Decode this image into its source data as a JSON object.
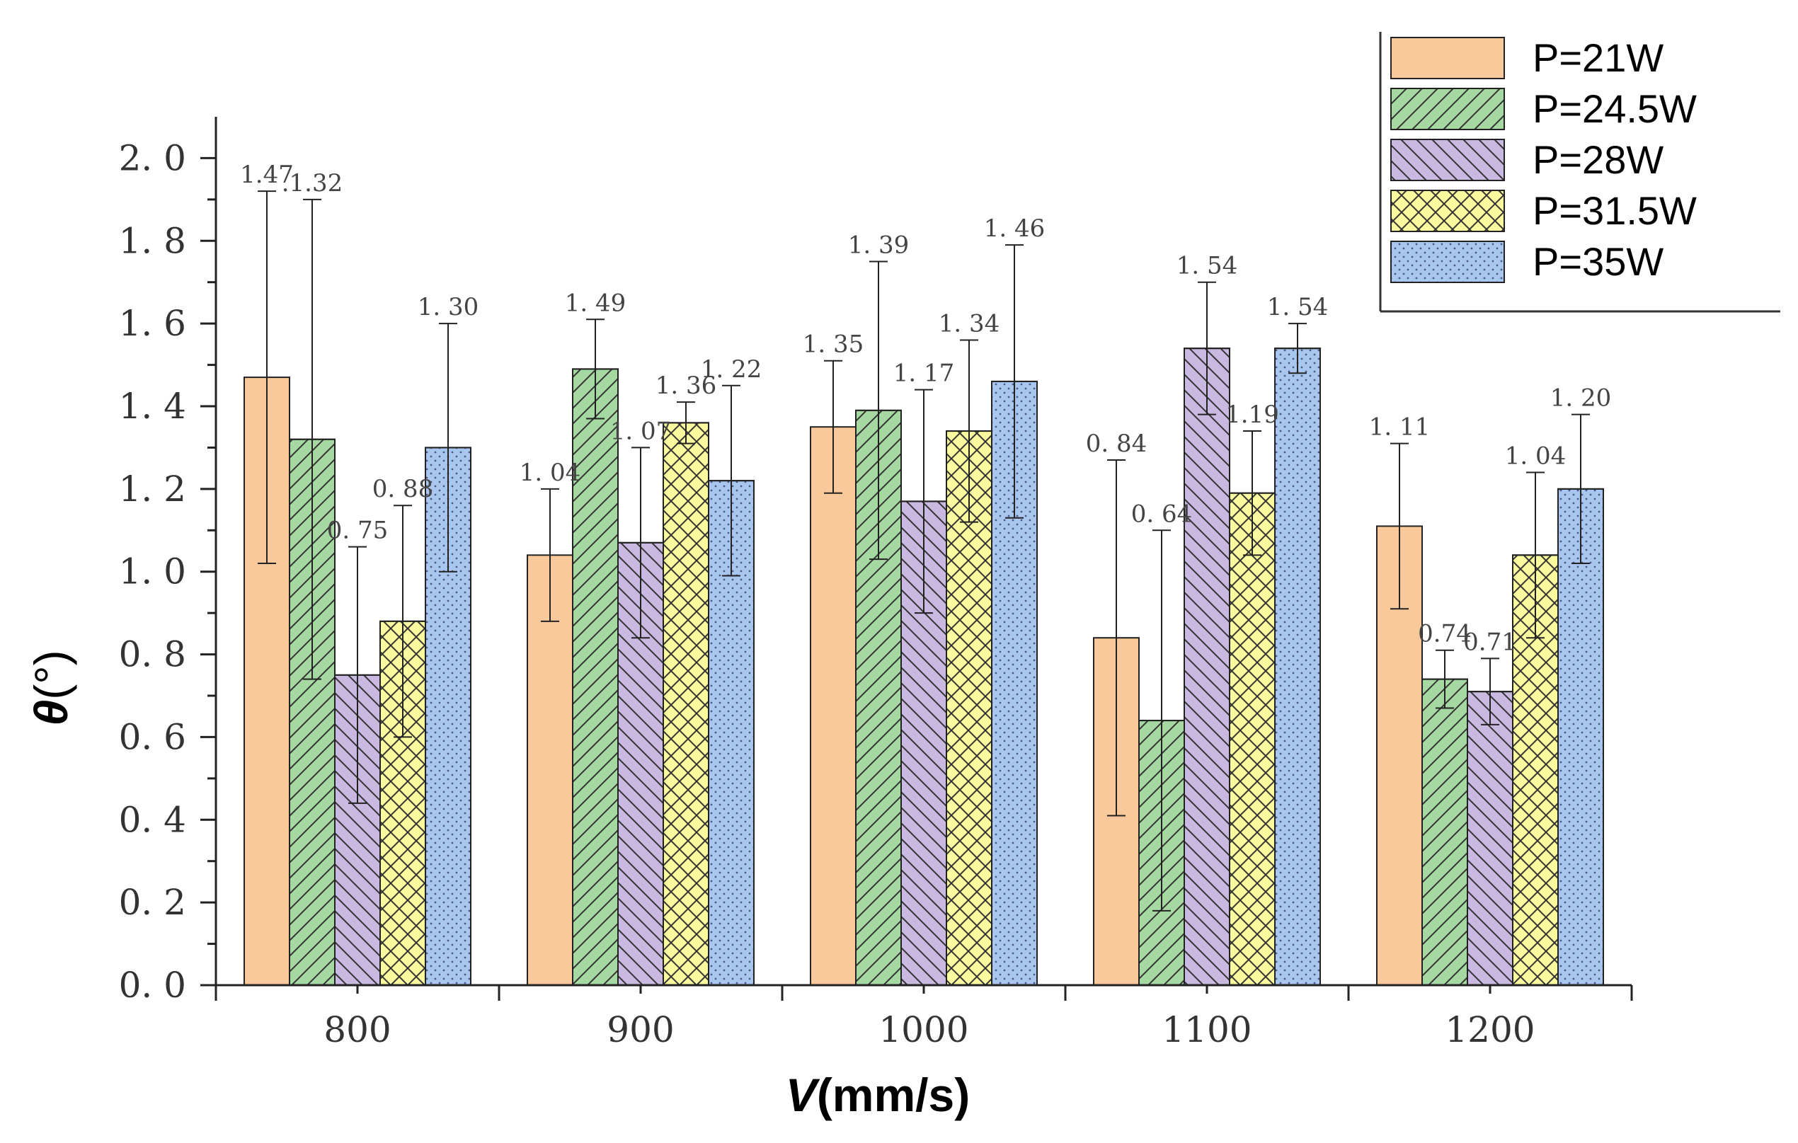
{
  "chart_data": {
    "type": "bar",
    "title": "",
    "xlabel": {
      "symbol": "V",
      "unit": "(mm/s)"
    },
    "ylabel": {
      "symbol": "θ",
      "unit": "(°)"
    },
    "categories": [
      "800",
      "900",
      "1000",
      "1100",
      "1200"
    ],
    "ylim": [
      0,
      2.1
    ],
    "yticks": [
      "0. 0",
      "0. 2",
      "0. 4",
      "0. 6",
      "0. 8",
      "1. 0",
      "1. 2",
      "1. 4",
      "1. 6",
      "1. 8",
      "2. 0"
    ],
    "grid": false,
    "legend_position": "top-right",
    "series": [
      {
        "name": "P=21W",
        "color": "#f9c99b",
        "pattern": "solid",
        "values": [
          1.47,
          1.04,
          1.35,
          0.84,
          1.11
        ],
        "error": [
          0.45,
          0.16,
          0.16,
          0.43,
          0.2
        ],
        "labels": [
          "1.47",
          "1. 04",
          "1. 35",
          "0. 84",
          "1. 11"
        ]
      },
      {
        "name": "P=24.5W",
        "color": "#a6d9a2",
        "pattern": "forward-diagonal",
        "values": [
          1.32,
          1.49,
          1.39,
          0.64,
          0.74
        ],
        "error": [
          0.58,
          0.12,
          0.36,
          0.46,
          0.07
        ],
        "labels": [
          ".1.32",
          "1. 49",
          "1. 39",
          "0. 64",
          "0.74"
        ]
      },
      {
        "name": "P=28W",
        "color": "#c9b8e0",
        "pattern": "back-diagonal",
        "values": [
          0.75,
          1.07,
          1.17,
          1.54,
          0.71
        ],
        "error": [
          0.31,
          0.23,
          0.27,
          0.16,
          0.08
        ],
        "labels": [
          "0. 75",
          "1. 07",
          "1. 17",
          "1. 54",
          "0.71"
        ]
      },
      {
        "name": "P=31.5W",
        "color": "#fafa9e",
        "pattern": "crosshatch",
        "values": [
          0.88,
          1.36,
          1.34,
          1.19,
          1.04
        ],
        "error": [
          0.28,
          0.05,
          0.22,
          0.15,
          0.2
        ],
        "labels": [
          "0. 88",
          "1. 36",
          "1. 34",
          "1.19",
          "1. 04"
        ]
      },
      {
        "name": "P=35W",
        "color": "#a9c6ef",
        "pattern": "dots",
        "values": [
          1.3,
          1.22,
          1.46,
          1.54,
          1.2
        ],
        "error": [
          0.3,
          0.23,
          0.33,
          0.06,
          0.18
        ],
        "labels": [
          "1. 30",
          "1. 22",
          "1. 46",
          "1. 54",
          "1. 20"
        ]
      }
    ]
  }
}
